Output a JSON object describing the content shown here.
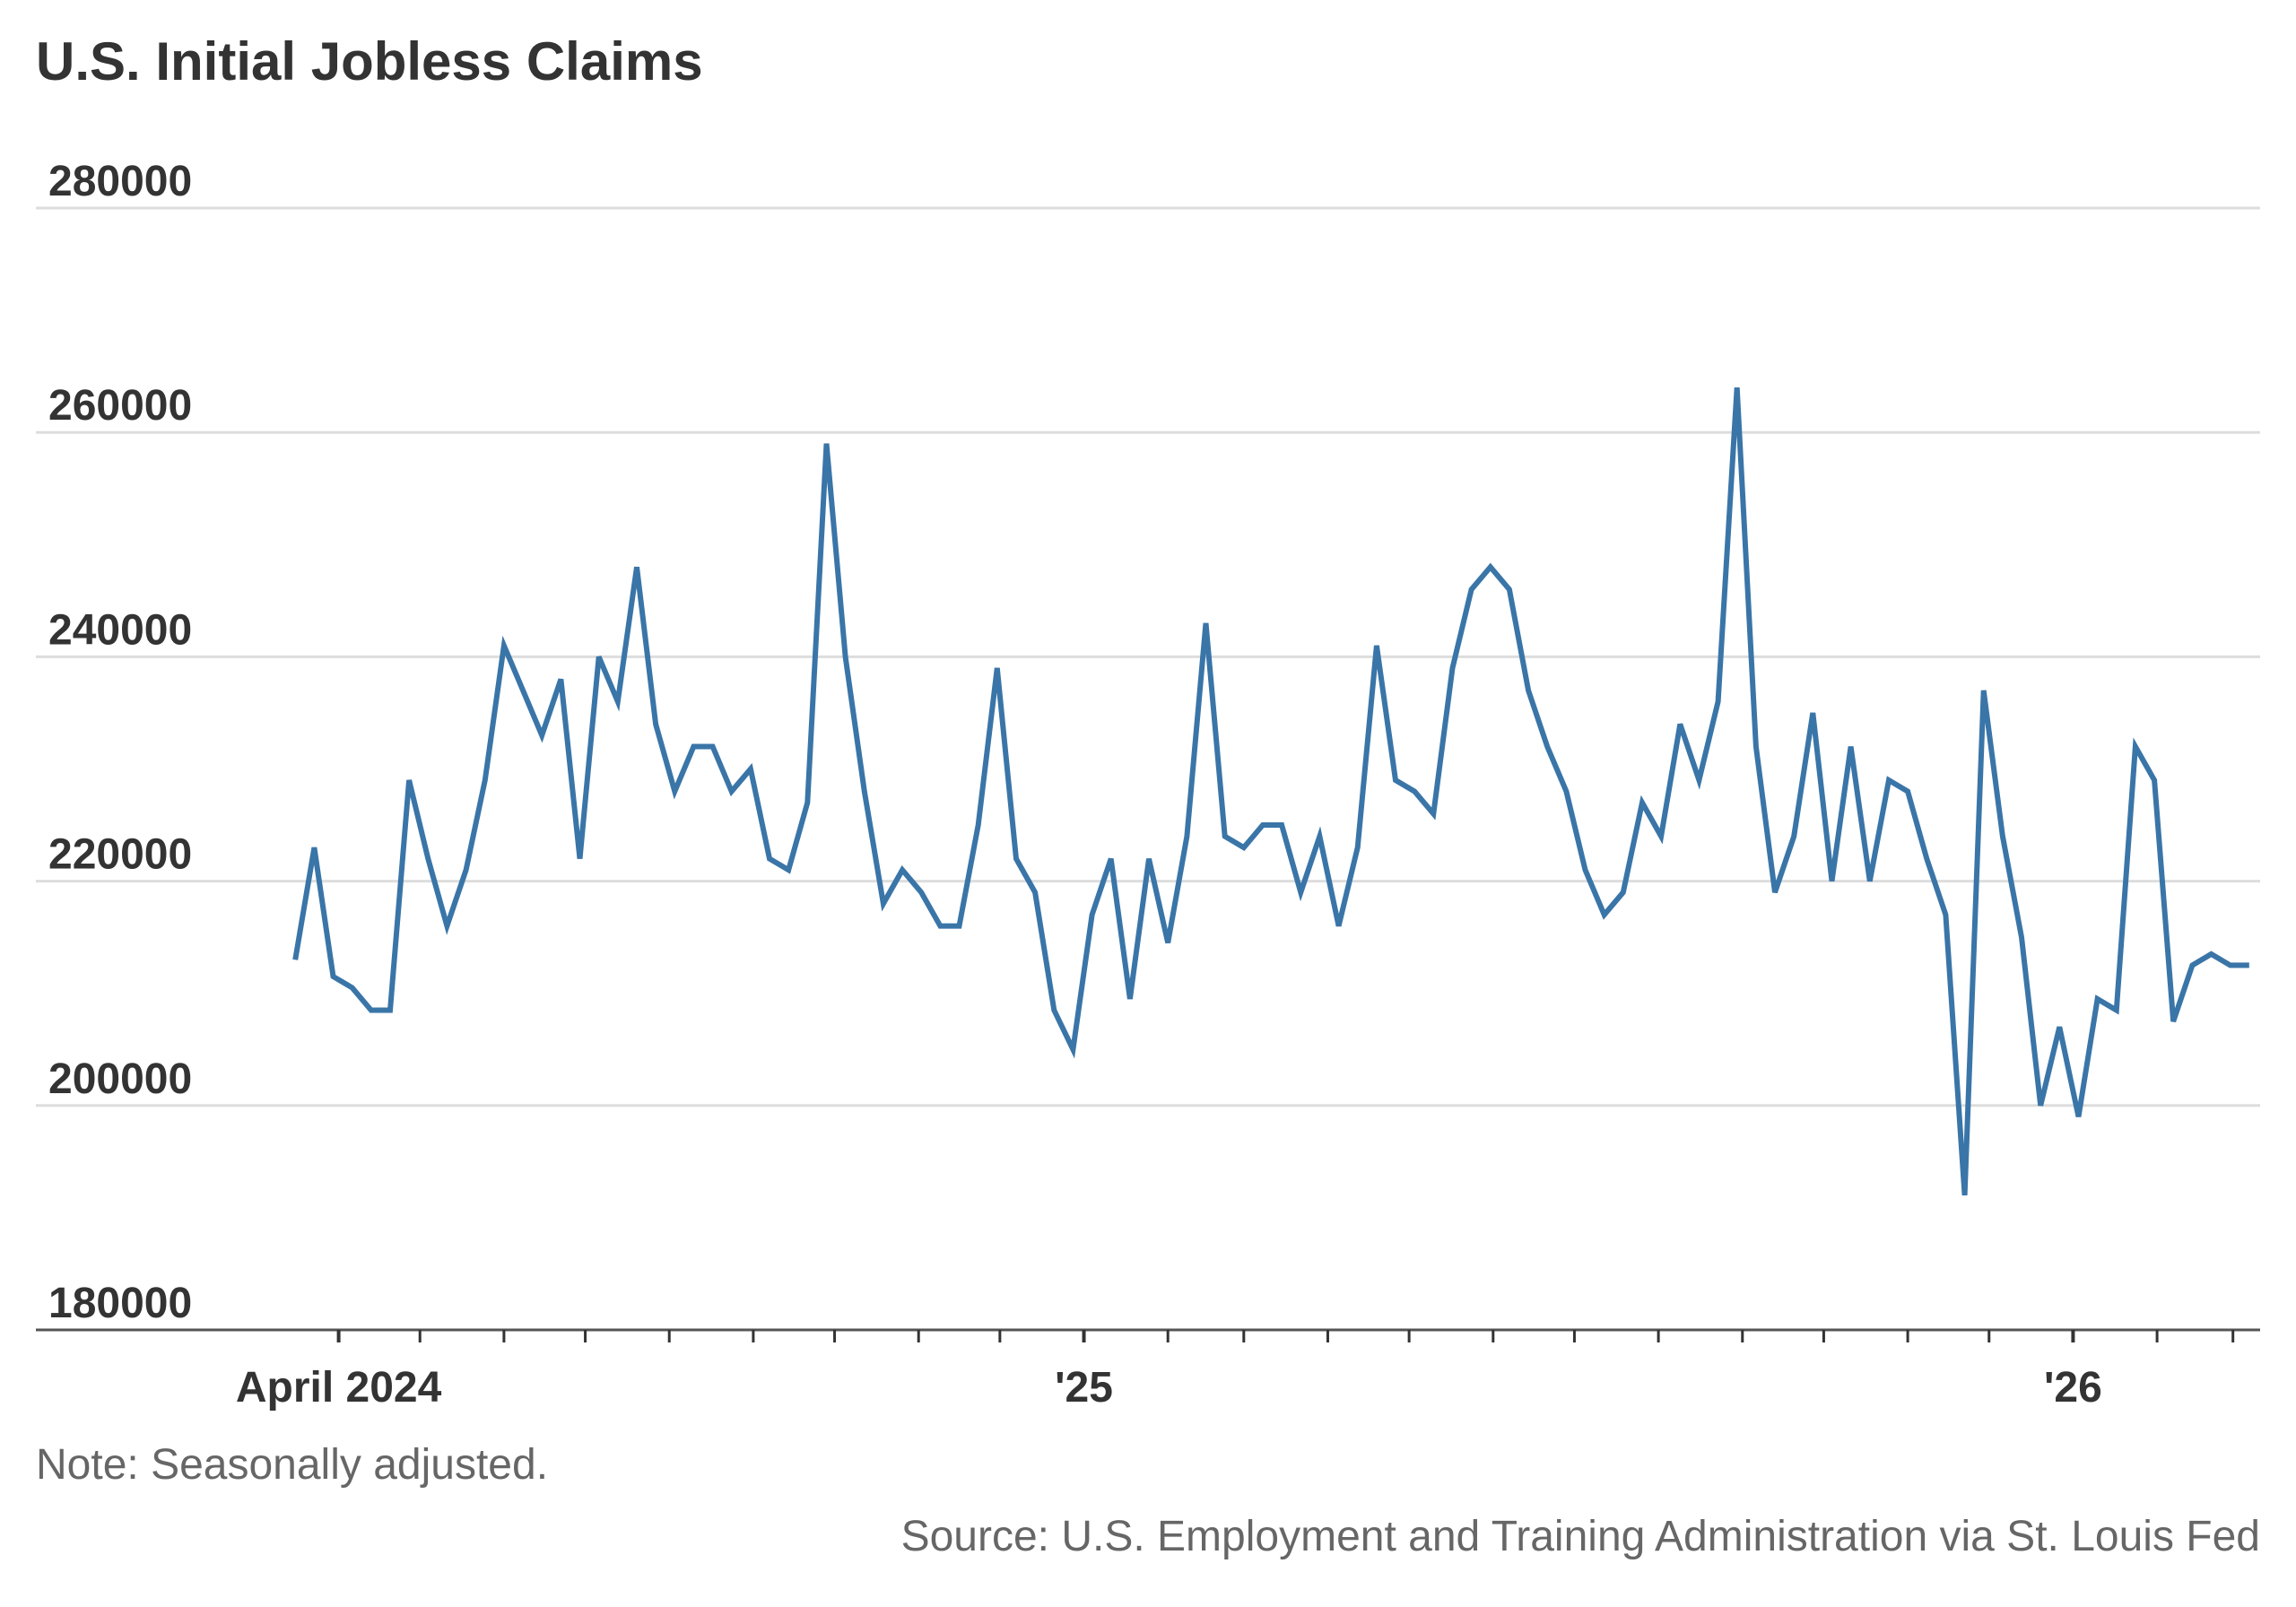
{
  "chart_data": {
    "type": "line",
    "title": "U.S. Initial Jobless Claims",
    "note": "Note: Seasonally adjusted.",
    "source": "Source: U.S. Employment and Training Administration via St. Louis Fed",
    "xlabel": "",
    "ylabel": "",
    "ylim": [
      180000,
      280000
    ],
    "yticks": [
      "180000",
      "200000",
      "220000",
      "240000",
      "260000",
      "280000"
    ],
    "xlim": [
      "2024-03-05",
      "2026-03-15"
    ],
    "xtick_labels": [
      {
        "date": "2024-04-01",
        "label": "April 2024"
      },
      {
        "date": "2025-01-01",
        "label": "'25"
      },
      {
        "date": "2026-01-01",
        "label": "'26"
      }
    ],
    "month_ticks": [
      "2024-04-01",
      "2024-05-01",
      "2024-06-01",
      "2024-07-01",
      "2024-08-01",
      "2024-09-01",
      "2024-10-01",
      "2024-11-01",
      "2024-12-01",
      "2025-01-01",
      "2025-02-01",
      "2025-03-01",
      "2025-04-01",
      "2025-05-01",
      "2025-06-01",
      "2025-07-01",
      "2025-08-01",
      "2025-09-01",
      "2025-10-01",
      "2025-11-01",
      "2025-12-01",
      "2026-01-01",
      "2026-02-01",
      "2026-03-01"
    ],
    "grid": true,
    "colors": {
      "line": "#3a75a8",
      "grid": "#dddddd",
      "axis": "#333333"
    },
    "series": [
      {
        "x": [
          "2024-03-16",
          "2024-03-23",
          "2024-03-30",
          "2024-04-06",
          "2024-04-13",
          "2024-04-20",
          "2024-04-27",
          "2024-05-04",
          "2024-05-11",
          "2024-05-18",
          "2024-05-25",
          "2024-06-01",
          "2024-06-08",
          "2024-06-15",
          "2024-06-22",
          "2024-06-29",
          "2024-07-06",
          "2024-07-13",
          "2024-07-20",
          "2024-07-27",
          "2024-08-03",
          "2024-08-10",
          "2024-08-17",
          "2024-08-24",
          "2024-08-31",
          "2024-09-07",
          "2024-09-14",
          "2024-09-21",
          "2024-09-28",
          "2024-10-05",
          "2024-10-12",
          "2024-10-19",
          "2024-10-26",
          "2024-11-02",
          "2024-11-09",
          "2024-11-16",
          "2024-11-23",
          "2024-11-30",
          "2024-12-07",
          "2024-12-14",
          "2024-12-21",
          "2024-12-28",
          "2025-01-04",
          "2025-01-11",
          "2025-01-18",
          "2025-01-25",
          "2025-02-01",
          "2025-02-08",
          "2025-02-15",
          "2025-02-22",
          "2025-03-01",
          "2025-03-08",
          "2025-03-15",
          "2025-03-22",
          "2025-03-29",
          "2025-04-05",
          "2025-04-12",
          "2025-04-19",
          "2025-04-26",
          "2025-05-03",
          "2025-05-10",
          "2025-05-17",
          "2025-05-24",
          "2025-05-31",
          "2025-06-07",
          "2025-06-14",
          "2025-06-21",
          "2025-06-28",
          "2025-07-05",
          "2025-07-12",
          "2025-07-19",
          "2025-07-26",
          "2025-08-02",
          "2025-08-09",
          "2025-08-16",
          "2025-08-23",
          "2025-08-30",
          "2025-09-06",
          "2025-09-13",
          "2025-09-20",
          "2025-09-27",
          "2025-10-04",
          "2025-10-11",
          "2025-10-18",
          "2025-10-25",
          "2025-11-01",
          "2025-11-08",
          "2025-11-15",
          "2025-11-22",
          "2025-11-29",
          "2025-12-06",
          "2025-12-13",
          "2025-12-20",
          "2025-12-27",
          "2026-01-03",
          "2026-01-10",
          "2026-01-17",
          "2026-01-24",
          "2026-01-31",
          "2026-02-07",
          "2026-02-14",
          "2026-02-21",
          "2026-02-28",
          "2026-03-07"
        ],
        "values": [
          213000,
          223000,
          211500,
          210500,
          208500,
          208500,
          229000,
          222000,
          216000,
          221000,
          229000,
          241000,
          237000,
          233000,
          238000,
          222000,
          240000,
          236000,
          248000,
          234000,
          228000,
          232000,
          232000,
          228000,
          230000,
          222000,
          221000,
          227000,
          259000,
          240000,
          228000,
          218000,
          221000,
          219000,
          216000,
          216000,
          225000,
          239000,
          222000,
          219000,
          208500,
          205000,
          217000,
          222000,
          209500,
          222000,
          214500,
          224000,
          243000,
          224000,
          223000,
          225000,
          225000,
          219000,
          224000,
          216000,
          223000,
          241000,
          229000,
          228000,
          226000,
          239000,
          246000,
          248000,
          246000,
          237000,
          232000,
          228000,
          221000,
          217000,
          219000,
          227000,
          224000,
          234000,
          229000,
          236000,
          264000,
          232000,
          219000,
          224000,
          235000,
          220000,
          232000,
          220000,
          229000,
          228000,
          222000,
          217000,
          192000,
          237000,
          224000,
          215000,
          200000,
          207000,
          199000,
          209500,
          208500,
          232000,
          229000,
          207500,
          212500,
          213500,
          212500,
          212500
        ]
      }
    ]
  }
}
